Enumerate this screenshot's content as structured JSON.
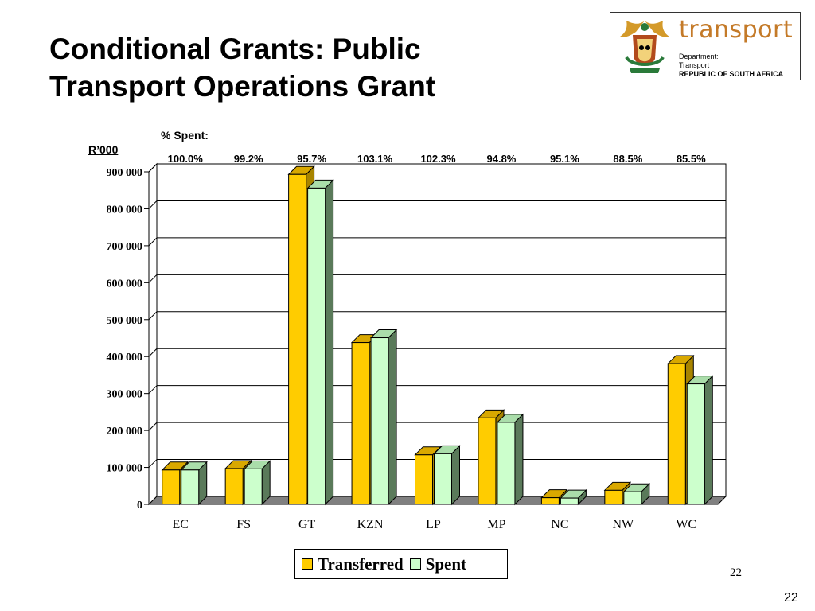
{
  "title": {
    "line1": "Conditional Grants: Public",
    "line2": "Transport Operations Grant"
  },
  "logo": {
    "word": "transport",
    "line1": "Department:",
    "line2": "Transport",
    "line3": "REPUBLIC OF SOUTH AFRICA"
  },
  "page_number_slide": "22",
  "page_number_footer": "22",
  "colors": {
    "transferred": "#ffcc00",
    "spent": "#ccffcc",
    "floor": "#808080",
    "side_transferred": "#a88400",
    "side_spent": "#5a7a5a"
  },
  "chart_data": {
    "type": "bar",
    "ylabel": "R’000",
    "percent_label": "% Spent:",
    "categories": [
      "EC",
      "FS",
      "GT",
      "KZN",
      "LP",
      "MP",
      "NC",
      "NW",
      "WC"
    ],
    "percent_spent": [
      "100.0%",
      "99.2%",
      "95.7%",
      "103.1%",
      "102.3%",
      "94.8%",
      "95.1%",
      "88.5%",
      "85.5%"
    ],
    "series": [
      {
        "name": "Transferred",
        "values": [
          93000,
          97000,
          893000,
          438000,
          134000,
          234000,
          18000,
          38000,
          381000
        ]
      },
      {
        "name": "Spent",
        "values": [
          93000,
          96000,
          856000,
          451000,
          137000,
          222000,
          17000,
          34000,
          326000
        ]
      }
    ],
    "ylim": [
      0,
      900000
    ],
    "yticks": [
      "0",
      "100 000",
      "200 000",
      "300 000",
      "400 000",
      "500 000",
      "600 000",
      "700 000",
      "800 000",
      "900 000"
    ],
    "grid": true,
    "legend": "bottom"
  }
}
